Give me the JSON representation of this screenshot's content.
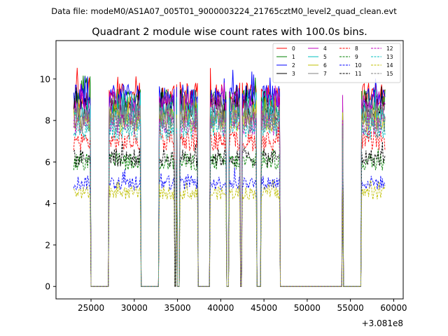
{
  "header": {
    "datafile": "Data file: modeM0/AS1A07_005T01_9000003224_21765cztM0_level2_quad_clean.evt"
  },
  "chart_data": {
    "type": "line",
    "title": "Quadrant 2 module wise count rates with 100.0s bins.",
    "xlabel": "",
    "ylabel": "",
    "xlim": [
      20950,
      61100
    ],
    "ylim": [
      -0.6,
      11.85
    ],
    "x_offset_label": "+3.081e8",
    "xticks": [
      25000,
      30000,
      35000,
      40000,
      45000,
      50000,
      55000,
      60000
    ],
    "xtick_labels": [
      "25000",
      "30000",
      "35000",
      "40000",
      "45000",
      "50000",
      "55000",
      "60000"
    ],
    "yticks": [
      0,
      2,
      4,
      6,
      8,
      10
    ],
    "ytick_labels": [
      "0",
      "2",
      "4",
      "6",
      "8",
      "10"
    ],
    "bin_seconds": 100,
    "segments": [
      [
        23000,
        24900
      ],
      [
        27100,
        28300
      ],
      [
        28400,
        30700
      ],
      [
        32900,
        34600
      ],
      [
        34900,
        34950
      ],
      [
        35300,
        37300
      ],
      [
        38800,
        40600
      ],
      [
        41000,
        42200
      ],
      [
        42500,
        44100
      ],
      [
        44700,
        46800
      ],
      [
        54050,
        54150
      ],
      [
        56300,
        59000
      ]
    ],
    "series": [
      {
        "name": "0",
        "level": 9.2,
        "color": "#ff0000",
        "dash": "solid"
      },
      {
        "name": "1",
        "level": 8.9,
        "color": "#008000",
        "dash": "solid"
      },
      {
        "name": "2",
        "level": 9.1,
        "color": "#0000ff",
        "dash": "solid"
      },
      {
        "name": "3",
        "level": 8.5,
        "color": "#000000",
        "dash": "solid"
      },
      {
        "name": "4",
        "level": 8.8,
        "color": "#bf00bf",
        "dash": "solid"
      },
      {
        "name": "5",
        "level": 8.3,
        "color": "#00bfbf",
        "dash": "solid"
      },
      {
        "name": "6",
        "level": 8.0,
        "color": "#bfbf00",
        "dash": "solid"
      },
      {
        "name": "7",
        "level": 8.2,
        "color": "#808080",
        "dash": "solid"
      },
      {
        "name": "8",
        "level": 7.0,
        "color": "#ff0000",
        "dash": "dashed"
      },
      {
        "name": "9",
        "level": 6.0,
        "color": "#008000",
        "dash": "dashed"
      },
      {
        "name": "10",
        "level": 5.0,
        "color": "#0000ff",
        "dash": "dashed"
      },
      {
        "name": "11",
        "level": 6.2,
        "color": "#000000",
        "dash": "dashed"
      },
      {
        "name": "12",
        "level": 7.8,
        "color": "#bf00bf",
        "dash": "dashed"
      },
      {
        "name": "13",
        "level": 7.6,
        "color": "#00bfbf",
        "dash": "dashed"
      },
      {
        "name": "14",
        "level": 4.5,
        "color": "#bfbf00",
        "dash": "dashed"
      },
      {
        "name": "15",
        "level": 7.9,
        "color": "#808080",
        "dash": "dashed"
      }
    ],
    "legend": {
      "location": "upper right",
      "columns": 4
    }
  }
}
